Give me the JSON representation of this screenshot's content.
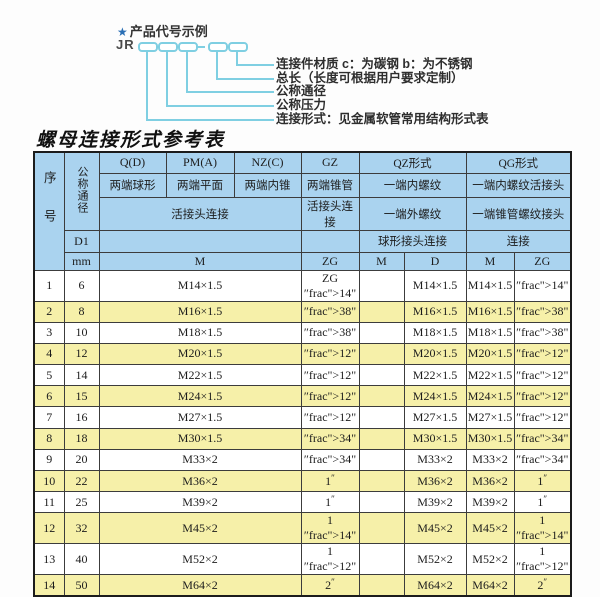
{
  "diagram": {
    "star_icon": "★",
    "heading": "产品代号示例",
    "code_prefix": "JR",
    "labels": [
      "连接件材质  c：为碳钢  b：为不锈钢",
      "总长（长度可根据用户要求定制）",
      "公称通径",
      "公称压力",
      "连接形式：见金属软管常用结构形式表"
    ]
  },
  "table": {
    "title": "螺母连接形式参考表",
    "header": {
      "serial": "序号",
      "dn": "公称通径",
      "d1": "D1",
      "mm": "mm",
      "q": "Q(D)",
      "pm": "PM(A)",
      "nz": "NZ(C)",
      "gz": "GZ",
      "qz": "QZ形式",
      "qg": "QG形式",
      "q_desc": "两端球形",
      "pm_desc": "两端平面",
      "nz_desc": "两端内锥",
      "gz_desc": "两端锥管",
      "qz_desc1": "一端内螺纹",
      "qg_desc1": "一端内螺纹活接头",
      "union_conn": "活接头连接",
      "gz_conn": "活接头连接",
      "qz_desc2": "一端外螺纹",
      "qg_desc2": "一端锥管螺纹接头",
      "qz_conn": "球形接头连接",
      "qg_conn": "连接",
      "m": "M",
      "zg": "ZG",
      "qz_m": "M",
      "qz_d": "D",
      "qg_m": "M",
      "qg_zg": "ZG"
    },
    "rows": [
      {
        "no": "1",
        "dn": "6",
        "m": "M14×1.5",
        "gz": "ZG 1/4\"",
        "qz_m": "",
        "qz_d": "M14×1.5",
        "qg_m": "M14×1.5",
        "qg_zg": "1/4\""
      },
      {
        "no": "2",
        "dn": "8",
        "m": "M16×1.5",
        "gz": "3/8\"",
        "qz_m": "",
        "qz_d": "M16×1.5",
        "qg_m": "M16×1.5",
        "qg_zg": "3/8\""
      },
      {
        "no": "3",
        "dn": "10",
        "m": "M18×1.5",
        "gz": "3/8\"",
        "qz_m": "",
        "qz_d": "M18×1.5",
        "qg_m": "M18×1.5",
        "qg_zg": "3/8\""
      },
      {
        "no": "4",
        "dn": "12",
        "m": "M20×1.5",
        "gz": "1/2\"",
        "qz_m": "",
        "qz_d": "M20×1.5",
        "qg_m": "M20×1.5",
        "qg_zg": "1/2\""
      },
      {
        "no": "5",
        "dn": "14",
        "m": "M22×1.5",
        "gz": "1/2\"",
        "qz_m": "",
        "qz_d": "M22×1.5",
        "qg_m": "M22×1.5",
        "qg_zg": "1/2\""
      },
      {
        "no": "6",
        "dn": "15",
        "m": "M24×1.5",
        "gz": "1/2\"",
        "qz_m": "",
        "qz_d": "M24×1.5",
        "qg_m": "M24×1.5",
        "qg_zg": "1/2\""
      },
      {
        "no": "7",
        "dn": "16",
        "m": "M27×1.5",
        "gz": "1/2\"",
        "qz_m": "",
        "qz_d": "M27×1.5",
        "qg_m": "M27×1.5",
        "qg_zg": "1/2\""
      },
      {
        "no": "8",
        "dn": "18",
        "m": "M30×1.5",
        "gz": "3/4\"",
        "qz_m": "",
        "qz_d": "M30×1.5",
        "qg_m": "M30×1.5",
        "qg_zg": "3/4\""
      },
      {
        "no": "9",
        "dn": "20",
        "m": "M33×2",
        "gz": "3/4\"",
        "qz_m": "",
        "qz_d": "M33×2",
        "qg_m": "M33×2",
        "qg_zg": "3/4\""
      },
      {
        "no": "10",
        "dn": "22",
        "m": "M36×2",
        "gz": "1\"",
        "qz_m": "",
        "qz_d": "M36×2",
        "qg_m": "M36×2",
        "qg_zg": "1\""
      },
      {
        "no": "11",
        "dn": "25",
        "m": "M39×2",
        "gz": "1\"",
        "qz_m": "",
        "qz_d": "M39×2",
        "qg_m": "M39×2",
        "qg_zg": "1\""
      },
      {
        "no": "12",
        "dn": "32",
        "m": "M45×2",
        "gz": "1 1/4\"",
        "qz_m": "",
        "qz_d": "M45×2",
        "qg_m": "M45×2",
        "qg_zg": "1 1/4\""
      },
      {
        "no": "13",
        "dn": "40",
        "m": "M52×2",
        "gz": "1 1/2\"",
        "qz_m": "",
        "qz_d": "M52×2",
        "qg_m": "M52×2",
        "qg_zg": "1 1/2\""
      },
      {
        "no": "14",
        "dn": "50",
        "m": "M64×2",
        "gz": "2\"",
        "qz_m": "",
        "qz_d": "M64×2",
        "qg_m": "M64×2",
        "qg_zg": "2\""
      }
    ]
  },
  "colors": {
    "header_bg": "#aad3ef",
    "row_alt_bg": "#f6f0a9",
    "connector_teal": "#7fcfe2",
    "star_blue": "#2b6fb5"
  }
}
